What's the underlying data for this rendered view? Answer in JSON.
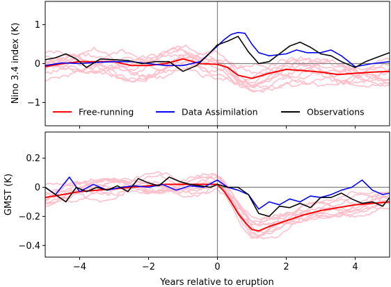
{
  "figure": {
    "xlabel": "Years relative to eruption"
  },
  "colors": {
    "free_running": "#ff0000",
    "data_assimilation": "#0000ff",
    "observations": "#000000",
    "ensemble": "#ffc0cb",
    "reference": "#808080"
  },
  "chart_data": [
    {
      "type": "line",
      "panel": "top",
      "ylabel": "Nino 3.4 index (K)",
      "xlim": [
        -5,
        5
      ],
      "ylim": [
        -1.6,
        1.6
      ],
      "xticks": [
        -4,
        -2,
        0,
        2,
        4
      ],
      "yticks": [
        -1,
        0,
        1
      ],
      "legend": {
        "placement": "bottom",
        "entries": [
          "Free-running",
          "Data Assimilation",
          "Observations"
        ]
      },
      "reference_lines": {
        "x": 0,
        "y": 0
      },
      "series": [
        {
          "name": "Free-running",
          "color": "#ff0000",
          "x": [
            -5,
            -4.5,
            -4,
            -3.5,
            -3,
            -2.5,
            -2,
            -1.5,
            -1,
            -0.5,
            0,
            0.3,
            0.6,
            1,
            1.5,
            2,
            2.5,
            3,
            3.5,
            4,
            4.5,
            5
          ],
          "y": [
            -0.08,
            0.0,
            0.05,
            0.05,
            0.05,
            -0.05,
            -0.05,
            0.0,
            0.12,
            0.0,
            -0.02,
            -0.1,
            -0.3,
            -0.38,
            -0.25,
            -0.15,
            -0.18,
            -0.22,
            -0.28,
            -0.25,
            -0.22,
            -0.2
          ]
        },
        {
          "name": "Data Assimilation",
          "color": "#0000ff",
          "x": [
            -5,
            -4.5,
            -4,
            -3.5,
            -3,
            -2.5,
            -2,
            -1.5,
            -1,
            -0.5,
            0,
            0.2,
            0.4,
            0.6,
            0.8,
            1,
            1.2,
            1.5,
            2,
            2.3,
            2.6,
            3,
            3.3,
            3.6,
            4,
            4.5,
            5
          ],
          "y": [
            -0.05,
            0.02,
            0.0,
            0.03,
            0.05,
            0.05,
            0.0,
            -0.05,
            -0.05,
            0.05,
            0.45,
            0.62,
            0.75,
            0.8,
            0.78,
            0.5,
            0.28,
            0.2,
            0.25,
            0.35,
            0.28,
            0.28,
            0.35,
            0.2,
            -0.08,
            0.0,
            0.05
          ]
        },
        {
          "name": "Observations",
          "color": "#000000",
          "x": [
            -5,
            -4.7,
            -4.4,
            -4.1,
            -3.8,
            -3.4,
            -3,
            -2.6,
            -2.2,
            -1.8,
            -1.4,
            -1,
            -0.6,
            -0.3,
            0,
            0.3,
            0.6,
            0.9,
            1.2,
            1.5,
            1.8,
            2.1,
            2.4,
            2.7,
            3,
            3.3,
            3.6,
            4,
            4.3,
            4.6,
            5
          ],
          "y": [
            0.1,
            0.15,
            0.25,
            0.12,
            -0.1,
            0.12,
            0.1,
            0.08,
            0.0,
            0.05,
            0.05,
            -0.2,
            -0.05,
            0.2,
            0.48,
            0.58,
            0.7,
            0.3,
            0.0,
            0.05,
            0.25,
            0.45,
            0.55,
            0.42,
            0.25,
            0.2,
            0.05,
            -0.1,
            0.05,
            0.15,
            0.28
          ]
        }
      ]
    },
    {
      "type": "line",
      "panel": "bottom",
      "ylabel": "GMST (K)",
      "xlabel": "Years relative to eruption",
      "xlim": [
        -5,
        5
      ],
      "ylim": [
        -0.48,
        0.38
      ],
      "xticks": [
        -4,
        -2,
        0,
        2,
        4
      ],
      "yticks": [
        -0.4,
        -0.2,
        0.0,
        0.2
      ],
      "reference_lines": {
        "x": 0,
        "y": 0
      },
      "series": [
        {
          "name": "Free-running",
          "color": "#ff0000",
          "x": [
            -5,
            -4.5,
            -4,
            -3.5,
            -3,
            -2.5,
            -2,
            -1.5,
            -1,
            -0.5,
            0,
            0.2,
            0.4,
            0.6,
            0.8,
            1,
            1.2,
            1.5,
            2,
            2.5,
            3,
            3.5,
            4,
            4.5,
            5
          ],
          "y": [
            -0.07,
            -0.05,
            -0.03,
            -0.02,
            -0.01,
            0.0,
            0.01,
            0.02,
            0.02,
            0.02,
            0.02,
            -0.03,
            -0.1,
            -0.18,
            -0.24,
            -0.29,
            -0.3,
            -0.27,
            -0.23,
            -0.19,
            -0.16,
            -0.14,
            -0.12,
            -0.11,
            -0.1
          ]
        },
        {
          "name": "Data Assimilation",
          "color": "#0000ff",
          "x": [
            -5,
            -4.7,
            -4.3,
            -4,
            -3.6,
            -3.2,
            -2.8,
            -2.4,
            -2,
            -1.6,
            -1.2,
            -0.8,
            -0.4,
            0,
            0.3,
            0.6,
            0.9,
            1.2,
            1.5,
            1.8,
            2.1,
            2.4,
            2.7,
            3,
            3.3,
            3.6,
            3.9,
            4.2,
            4.5,
            4.8,
            5
          ],
          "y": [
            0.0,
            -0.05,
            0.07,
            -0.03,
            0.02,
            -0.02,
            0.0,
            0.01,
            0.0,
            0.02,
            -0.02,
            0.01,
            0.0,
            0.05,
            0.0,
            -0.02,
            -0.05,
            -0.15,
            -0.1,
            -0.12,
            -0.08,
            -0.1,
            -0.06,
            -0.07,
            -0.05,
            -0.02,
            0.0,
            0.05,
            -0.02,
            -0.05,
            -0.04
          ]
        },
        {
          "name": "Observations",
          "color": "#000000",
          "x": [
            -5,
            -4.7,
            -4.4,
            -4.1,
            -3.8,
            -3.5,
            -3.2,
            -2.9,
            -2.6,
            -2.3,
            -2,
            -1.7,
            -1.4,
            -1.1,
            -0.8,
            -0.5,
            -0.2,
            0,
            0.3,
            0.6,
            0.9,
            1.2,
            1.5,
            1.8,
            2.1,
            2.4,
            2.7,
            3,
            3.3,
            3.6,
            3.9,
            4.2,
            4.5,
            4.8,
            5
          ],
          "y": [
            0.0,
            -0.05,
            -0.1,
            0.0,
            -0.03,
            0.0,
            -0.02,
            0.01,
            -0.03,
            0.06,
            0.03,
            0.01,
            0.07,
            0.04,
            0.02,
            0.01,
            0.0,
            0.02,
            0.0,
            0.0,
            -0.05,
            -0.18,
            -0.2,
            -0.13,
            -0.14,
            -0.11,
            -0.14,
            -0.07,
            -0.07,
            -0.04,
            -0.08,
            -0.11,
            -0.1,
            -0.13,
            -0.07
          ]
        }
      ]
    }
  ]
}
